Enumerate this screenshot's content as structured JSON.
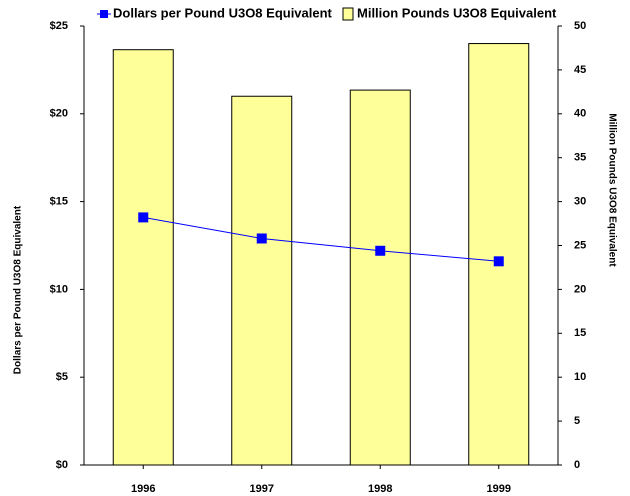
{
  "chart_data": {
    "type": "bar",
    "categories": [
      "1996",
      "1997",
      "1998",
      "1999"
    ],
    "series": [
      {
        "name": "Dollars per Pound U3O8 Equivalent",
        "type": "line",
        "axis": "y",
        "color": "#0000ff",
        "values": [
          14.1,
          12.9,
          12.2,
          11.6
        ]
      },
      {
        "name": "Million Pounds U3O8 Equivalent",
        "type": "bar",
        "axis": "y2",
        "color": "#ffff99",
        "values": [
          47.3,
          42.0,
          42.7,
          48.0
        ]
      }
    ],
    "ylabel": "Dollars per Pound U3O8 Equivalent",
    "y2label": "Million Pounds U3O8 Equivalent",
    "ylim": [
      0,
      25
    ],
    "yticks": [
      {
        "value": 0,
        "label": "$0"
      },
      {
        "value": 5,
        "label": "$5"
      },
      {
        "value": 10,
        "label": "$10"
      },
      {
        "value": 15,
        "label": "$15"
      },
      {
        "value": 20,
        "label": "$20"
      },
      {
        "value": 25,
        "label": "$25"
      }
    ],
    "y2lim": [
      0,
      50
    ],
    "y2ticks": [
      0,
      5,
      10,
      15,
      20,
      25,
      30,
      35,
      40,
      45,
      50
    ],
    "legend": "top"
  }
}
